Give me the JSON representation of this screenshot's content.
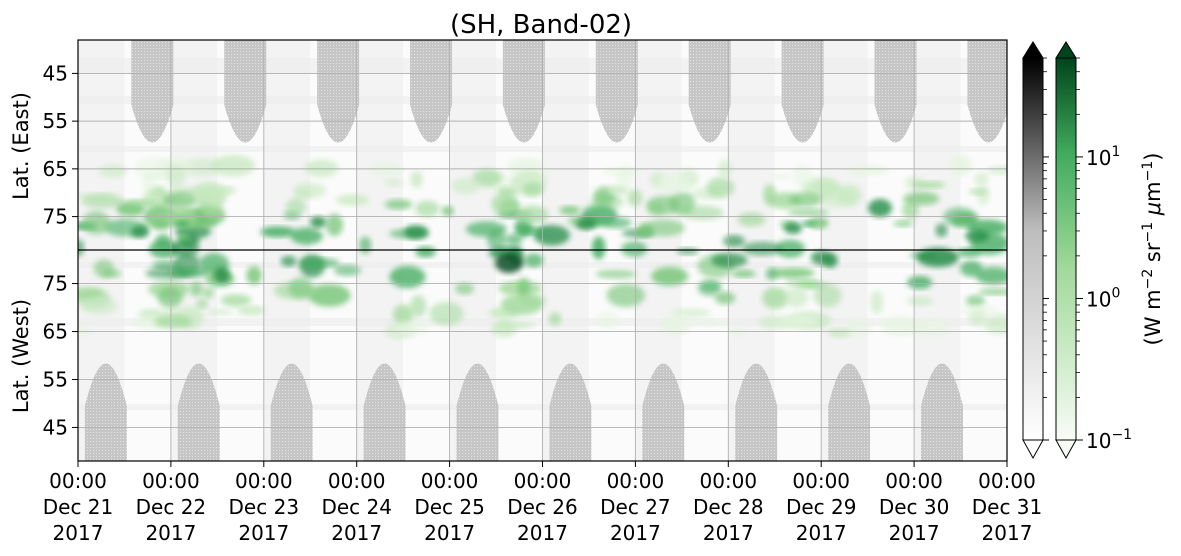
{
  "chart_data": {
    "type": "heatmap",
    "title": "(SH, Band-02)",
    "xlabel": "",
    "x_ticks": [
      {
        "time": "00:00",
        "date": "Dec 21",
        "year": "2017"
      },
      {
        "time": "00:00",
        "date": "Dec 22",
        "year": "2017"
      },
      {
        "time": "00:00",
        "date": "Dec 23",
        "year": "2017"
      },
      {
        "time": "00:00",
        "date": "Dec 24",
        "year": "2017"
      },
      {
        "time": "00:00",
        "date": "Dec 25",
        "year": "2017"
      },
      {
        "time": "00:00",
        "date": "Dec 26",
        "year": "2017"
      },
      {
        "time": "00:00",
        "date": "Dec 27",
        "year": "2017"
      },
      {
        "time": "00:00",
        "date": "Dec 28",
        "year": "2017"
      },
      {
        "time": "00:00",
        "date": "Dec 29",
        "year": "2017"
      },
      {
        "time": "00:00",
        "date": "Dec 30",
        "year": "2017"
      },
      {
        "time": "00:00",
        "date": "Dec 31",
        "year": "2017"
      }
    ],
    "xlim": [
      "2017-12-21 00:00",
      "2017-12-31 00:00"
    ],
    "y_panels": [
      {
        "label": "Lat. (East)",
        "ticks": [
          "45",
          "55",
          "65",
          "75"
        ],
        "lat_range": [
          38,
          82
        ]
      },
      {
        "label": "Lat. (West)",
        "ticks": [
          "75",
          "65",
          "55",
          "45"
        ],
        "lat_range": [
          82,
          38
        ]
      }
    ],
    "colorbars": [
      {
        "name": "gray",
        "colors": [
          "#ffffff",
          "#bdbdbd",
          "#000000"
        ],
        "extend": "both"
      },
      {
        "name": "green",
        "colors": [
          "#f7fcf5",
          "#74c476",
          "#00441b"
        ],
        "extend": "both",
        "label": "(W m$^{-2}$ sr$^{-1}$ $\\mu$m$^{-1}$)",
        "scale": "log",
        "range": [
          0.1,
          50
        ],
        "ticks": [
          {
            "base": "10",
            "exp": "1",
            "value": 10
          },
          {
            "base": "10",
            "exp": "0",
            "value": 1
          },
          {
            "base": "10",
            "exp": "−1",
            "value": 0.1
          }
        ]
      }
    ],
    "colorbar_label": {
      "open": "(W m",
      "e1": "−2",
      "m1": " sr",
      "e2": "−1",
      "m2": " ",
      "mu": "μ",
      "m3": "m",
      "e3": "−1",
      "close": ")"
    },
    "grid": true,
    "daylight_lobe_centers_days": [
      0.8,
      1.8,
      2.8,
      3.8,
      4.8,
      5.8,
      6.8,
      7.8,
      8.8,
      9.8
    ],
    "night_lobe_centers_days": [
      0.3,
      1.3,
      2.3,
      3.3,
      4.3,
      5.3,
      6.3,
      7.3,
      8.3,
      9.3
    ]
  }
}
